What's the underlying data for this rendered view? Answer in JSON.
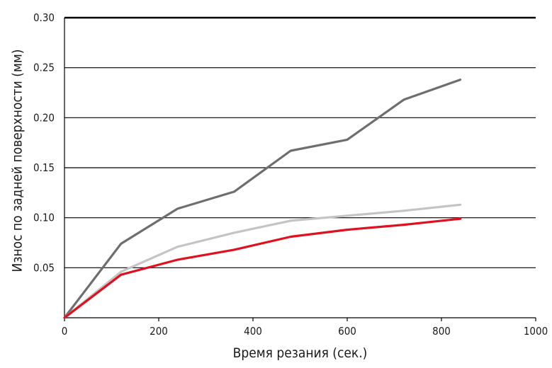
{
  "chart_data": {
    "type": "line",
    "xlabel": "Время резания (сек.)",
    "ylabel": "Износ по задней поверхности (мм)",
    "xlim": [
      0,
      1000
    ],
    "ylim": [
      0,
      0.3
    ],
    "x_ticks": [
      0,
      200,
      400,
      600,
      800,
      1000
    ],
    "y_ticks": [
      0.05,
      0.1,
      0.15,
      0.2,
      0.25,
      0.3
    ],
    "x_tick_labels": [
      "0",
      "200",
      "400",
      "600",
      "800",
      "1000"
    ],
    "y_tick_labels": [
      "0.05",
      "0.10",
      "0.15",
      "0.20",
      "0.25",
      "0.30"
    ],
    "grid": "horizontal",
    "series": [
      {
        "color": "#6e6e6e",
        "points": [
          [
            0,
            0.0
          ],
          [
            120,
            0.074
          ],
          [
            240,
            0.109
          ],
          [
            360,
            0.126
          ],
          [
            480,
            0.167
          ],
          [
            600,
            0.178
          ],
          [
            720,
            0.218
          ],
          [
            840,
            0.238
          ]
        ]
      },
      {
        "color": "#c4c4c4",
        "points": [
          [
            0,
            0.0
          ],
          [
            120,
            0.046
          ],
          [
            240,
            0.071
          ],
          [
            360,
            0.085
          ],
          [
            480,
            0.097
          ],
          [
            600,
            0.102
          ],
          [
            720,
            0.107
          ],
          [
            840,
            0.113
          ]
        ]
      },
      {
        "color": "#e0101e",
        "points": [
          [
            0,
            0.0
          ],
          [
            120,
            0.043
          ],
          [
            240,
            0.058
          ],
          [
            360,
            0.068
          ],
          [
            480,
            0.081
          ],
          [
            600,
            0.088
          ],
          [
            720,
            0.093
          ],
          [
            840,
            0.099
          ]
        ]
      }
    ]
  }
}
